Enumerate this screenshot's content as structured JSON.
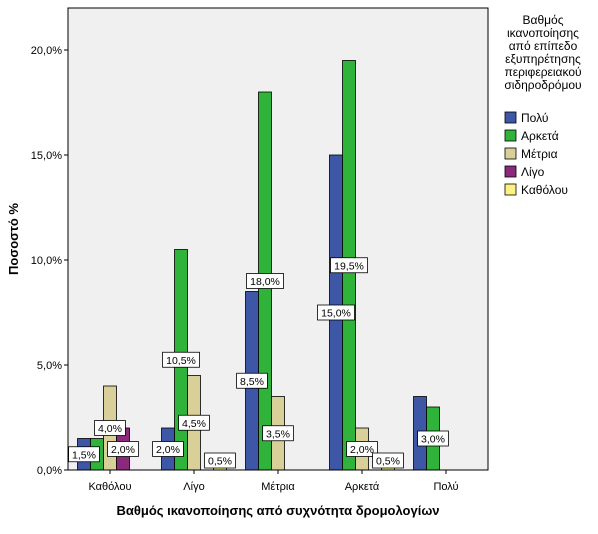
{
  "chart_data": {
    "type": "bar",
    "title": "",
    "xlabel": "Βαθμός ικανοποίησης από συχνότητα δρομολογίων",
    "ylabel": "Ποσοστό %",
    "ylim": [
      0,
      22
    ],
    "y_ticks": [
      "0,0%",
      "5,0%",
      "10,0%",
      "15,0%",
      "20,0%"
    ],
    "y_tick_values": [
      0,
      5,
      10,
      15,
      20
    ],
    "grid": false,
    "legend_position": "right",
    "legend_title_lines": [
      "Βαθμός",
      "ικανοποίησης",
      "από επίπεδο",
      "εξυπηρέτησης",
      "περιφερειακού",
      "σιδηροδρόμου"
    ],
    "categories": [
      "Καθόλου",
      "Λίγο",
      "Μέτρια",
      "Αρκετά",
      "Πολύ"
    ],
    "series": [
      {
        "name": "Πολύ",
        "color": "#3d56a6",
        "values": [
          1.5,
          2.0,
          8.5,
          15.0,
          3.5
        ]
      },
      {
        "name": "Αρκετά",
        "color": "#2fb33a",
        "values": [
          1.5,
          10.5,
          18.0,
          19.5,
          3.0
        ]
      },
      {
        "name": "Μέτρια",
        "color": "#d9cf99",
        "values": [
          4.0,
          4.5,
          3.5,
          2.0,
          0
        ]
      },
      {
        "name": "Λίγο",
        "color": "#8b2a7c",
        "values": [
          2.0,
          0,
          0,
          0,
          0
        ]
      },
      {
        "name": "Καθόλου",
        "color": "#fbf283",
        "values": [
          0,
          0.5,
          0,
          0.5,
          0
        ]
      }
    ],
    "data_labels": [
      {
        "text": "1,5%",
        "category": 0,
        "series": 0,
        "value": 1.5
      },
      {
        "text": "4,0%",
        "category": 0,
        "series": 2,
        "value": 4.0
      },
      {
        "text": "2,0%",
        "category": 0,
        "series": 3,
        "value": 2.0
      },
      {
        "text": "2,0%",
        "category": 1,
        "series": 0,
        "value": 2.0
      },
      {
        "text": "10,5%",
        "category": 1,
        "series": 1,
        "value": 10.5
      },
      {
        "text": "4,5%",
        "category": 1,
        "series": 2,
        "value": 4.5
      },
      {
        "text": "0,5%",
        "category": 1,
        "series": 4,
        "value": 0.5
      },
      {
        "text": "8,5%",
        "category": 2,
        "series": 0,
        "value": 8.5
      },
      {
        "text": "18,0%",
        "category": 2,
        "series": 1,
        "value": 18.0
      },
      {
        "text": "3,5%",
        "category": 2,
        "series": 2,
        "value": 3.5
      },
      {
        "text": "15,0%",
        "category": 3,
        "series": 0,
        "value": 15.0
      },
      {
        "text": "19,5%",
        "category": 3,
        "series": 1,
        "value": 19.5
      },
      {
        "text": "2,0%",
        "category": 3,
        "series": 2,
        "value": 2.0
      },
      {
        "text": "0,5%",
        "category": 3,
        "series": 4,
        "value": 0.5
      },
      {
        "text": "3,0%",
        "category": 4,
        "series": 1,
        "value": 3.0
      }
    ]
  }
}
